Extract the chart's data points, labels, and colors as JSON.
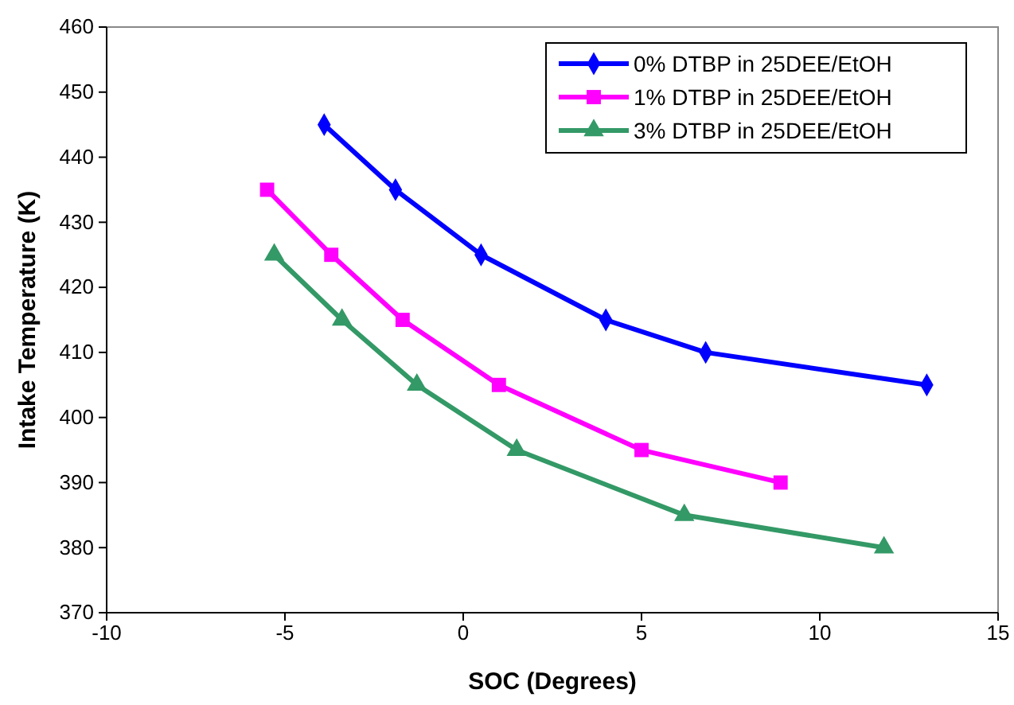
{
  "chart_data": {
    "type": "line",
    "xlabel": "SOC (Degrees)",
    "ylabel": "Intake Temperature (K)",
    "xlim": [
      -10,
      15
    ],
    "xticks": [
      -10,
      -5,
      0,
      5,
      10,
      15
    ],
    "ylim": [
      370,
      460
    ],
    "yticks": [
      370,
      380,
      390,
      400,
      410,
      420,
      430,
      440,
      450,
      460
    ],
    "grid": false,
    "legend": "top right",
    "line_style": "solid",
    "series": [
      {
        "name": "0% DTBP in 25DEE/EtOH",
        "color": "#0000ff",
        "marker": "diamond",
        "x": [
          -3.9,
          -1.9,
          0.5,
          4.0,
          6.8,
          13.0
        ],
        "values": [
          445,
          435,
          425,
          415,
          410,
          405
        ]
      },
      {
        "name": "1% DTBP in 25DEE/EtOH",
        "color": "#ff00ff",
        "marker": "square",
        "x": [
          -5.5,
          -3.7,
          -1.7,
          1.0,
          5.0,
          8.9
        ],
        "values": [
          435,
          425,
          415,
          405,
          395,
          390
        ]
      },
      {
        "name": "3% DTBP in 25DEE/EtOH",
        "color": "#339966",
        "marker": "triangle",
        "x": [
          -5.3,
          -3.4,
          -1.3,
          1.5,
          6.2,
          11.8
        ],
        "values": [
          425,
          415,
          405,
          395,
          385,
          380
        ]
      }
    ]
  }
}
